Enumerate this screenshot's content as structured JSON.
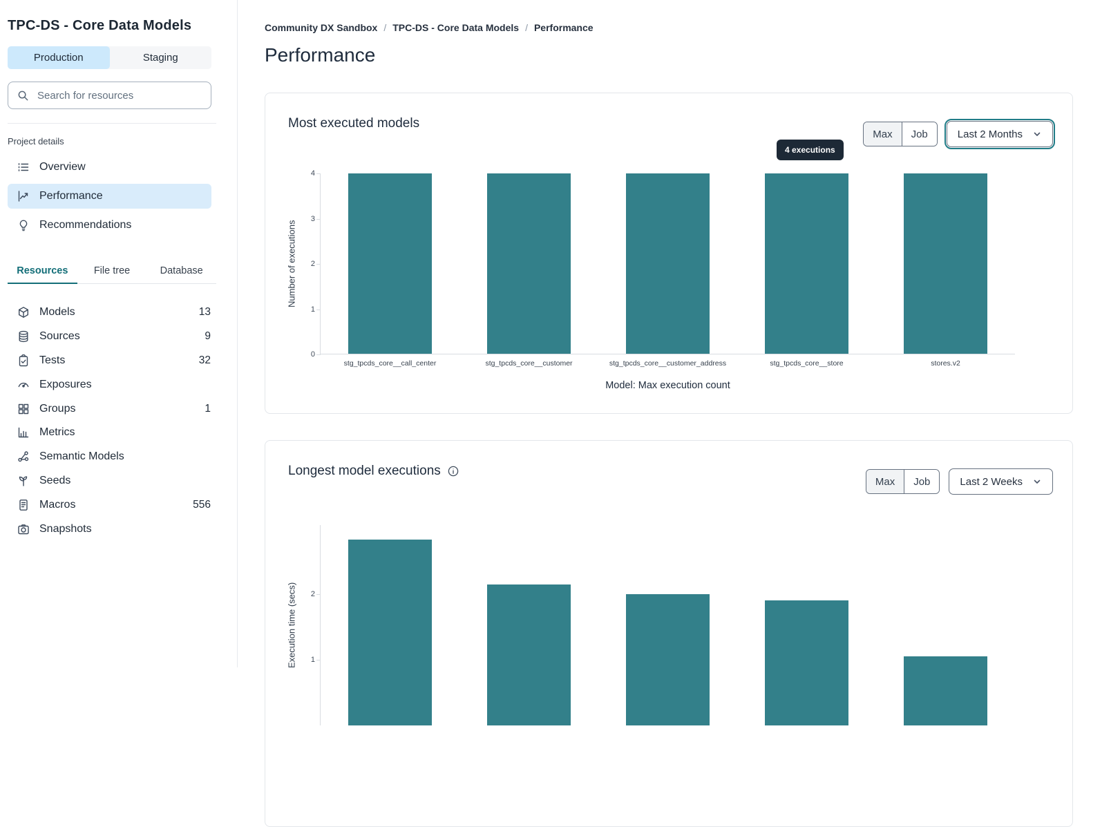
{
  "sidebar": {
    "title": "TPC-DS - Core Data Models",
    "env_tabs": [
      {
        "label": "Production",
        "active": true
      },
      {
        "label": "Staging",
        "active": false
      }
    ],
    "search_placeholder": "Search for resources",
    "project_details_label": "Project details",
    "nav": [
      {
        "label": "Overview",
        "icon": "list",
        "active": false
      },
      {
        "label": "Performance",
        "icon": "chart-line",
        "active": true
      },
      {
        "label": "Recommendations",
        "icon": "lightbulb",
        "active": false
      }
    ],
    "resource_tabs": [
      {
        "label": "Resources",
        "active": true
      },
      {
        "label": "File tree",
        "active": false
      },
      {
        "label": "Database",
        "active": false
      }
    ],
    "resources": [
      {
        "label": "Models",
        "icon": "cube",
        "count": "13"
      },
      {
        "label": "Sources",
        "icon": "database",
        "count": "9"
      },
      {
        "label": "Tests",
        "icon": "clipboard-check",
        "count": "32"
      },
      {
        "label": "Exposures",
        "icon": "gauge",
        "count": ""
      },
      {
        "label": "Groups",
        "icon": "grid",
        "count": "1"
      },
      {
        "label": "Metrics",
        "icon": "bar-chart",
        "count": ""
      },
      {
        "label": "Semantic Models",
        "icon": "network",
        "count": ""
      },
      {
        "label": "Seeds",
        "icon": "sprout",
        "count": ""
      },
      {
        "label": "Macros",
        "icon": "file-text",
        "count": "556"
      },
      {
        "label": "Snapshots",
        "icon": "camera",
        "count": ""
      }
    ]
  },
  "breadcrumb": {
    "items": [
      "Community DX Sandbox",
      "TPC-DS - Core Data Models",
      "Performance"
    ],
    "separator": "/"
  },
  "page_title": "Performance",
  "colors": {
    "bar_teal": "#33808a",
    "focus_ring_teal": "#207c87",
    "tooltip_bg": "#1d2936",
    "active_tab_teal": "#136e78",
    "active_nav_blue": "#d9ecfb",
    "active_env_blue": "#cde9fc"
  },
  "chart_data": [
    {
      "type": "bar",
      "title": "Most executed models",
      "categories": [
        "stg_tpcds_core__call_center",
        "stg_tpcds_core__customer",
        "stg_tpcds_core__customer_address",
        "stg_tpcds_core__store",
        "stores.v2"
      ],
      "values": [
        4,
        4,
        4,
        4,
        4
      ],
      "ylabel": "Number of executions",
      "xlabel": "Model: Max execution count",
      "ylim": [
        0,
        4
      ],
      "yticks": [
        0,
        1,
        2,
        3,
        4
      ],
      "tooltip": "4 executions",
      "controls": {
        "segmented": [
          "Max",
          "Job"
        ],
        "active_segment": "Max",
        "dropdown": "Last 2 Months",
        "dropdown_focused": true
      }
    },
    {
      "type": "bar",
      "title": "Longest model executions",
      "categories": [
        "",
        "",
        "",
        "",
        ""
      ],
      "values": [
        2.83,
        2.15,
        2.0,
        1.9,
        1.05
      ],
      "ylabel": "Execution time (secs)",
      "xlabel": "",
      "ylim": [
        0,
        3.05
      ],
      "yticks": [
        1,
        2
      ],
      "controls": {
        "segmented": [
          "Max",
          "Job"
        ],
        "active_segment": "Max",
        "dropdown": "Last 2 Weeks",
        "dropdown_focused": false
      }
    }
  ]
}
